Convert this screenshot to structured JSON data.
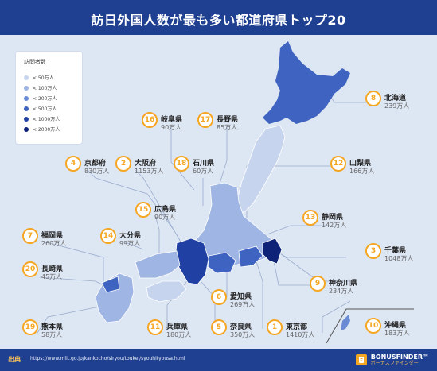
{
  "title": "訪日外国人数が最も多い都道府県トップ20",
  "legend": {
    "title": "訪問者数",
    "items": [
      {
        "label": "< 50万人",
        "color": "#c6d4ee"
      },
      {
        "label": "< 100万人",
        "color": "#9fb5e3"
      },
      {
        "label": "< 200万人",
        "color": "#6a8bd4"
      },
      {
        "label": "< 500万人",
        "color": "#3f63c0"
      },
      {
        "label": "< 1000万人",
        "color": "#2140a3"
      },
      {
        "label": "< 2000万人",
        "color": "#0e2278"
      }
    ]
  },
  "prefectures": [
    {
      "rank": "1",
      "name": "東京都",
      "value": "1410万人"
    },
    {
      "rank": "2",
      "name": "大阪府",
      "value": "1153万人"
    },
    {
      "rank": "3",
      "name": "千葉県",
      "value": "1048万人"
    },
    {
      "rank": "4",
      "name": "京都府",
      "value": "830万人"
    },
    {
      "rank": "5",
      "name": "奈良県",
      "value": "350万人"
    },
    {
      "rank": "6",
      "name": "愛知県",
      "value": "269万人"
    },
    {
      "rank": "7",
      "name": "福岡県",
      "value": "260万人"
    },
    {
      "rank": "8",
      "name": "北海道",
      "value": "239万人"
    },
    {
      "rank": "9",
      "name": "神奈川県",
      "value": "234万人"
    },
    {
      "rank": "10",
      "name": "沖縄県",
      "value": "183万人"
    },
    {
      "rank": "11",
      "name": "兵庫県",
      "value": "180万人"
    },
    {
      "rank": "12",
      "name": "山梨県",
      "value": "166万人"
    },
    {
      "rank": "13",
      "name": "静岡県",
      "value": "142万人"
    },
    {
      "rank": "14",
      "name": "大分県",
      "value": "99万人"
    },
    {
      "rank": "15",
      "name": "広島県",
      "value": "90万人"
    },
    {
      "rank": "16",
      "name": "岐阜県",
      "value": "90万人"
    },
    {
      "rank": "17",
      "name": "長野県",
      "value": "85万人"
    },
    {
      "rank": "18",
      "name": "石川県",
      "value": "60万人"
    },
    {
      "rank": "19",
      "name": "熊本県",
      "value": "58万人"
    },
    {
      "rank": "20",
      "name": "長崎県",
      "value": "45万人"
    }
  ],
  "footer": {
    "source_label": "出典",
    "source_url": "https://www.mlit.go.jp/kankocho/siryou/toukei/syouhityousa.html",
    "brand_name": "BONUSFINDER™",
    "brand_sub": "ボーナスファインダー"
  }
}
